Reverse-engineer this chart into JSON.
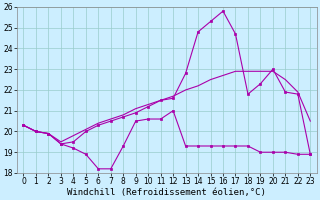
{
  "xlabel": "Windchill (Refroidissement éolien,°C)",
  "x": [
    0,
    1,
    2,
    3,
    4,
    5,
    6,
    7,
    8,
    9,
    10,
    11,
    12,
    13,
    14,
    15,
    16,
    17,
    18,
    19,
    20,
    21,
    22,
    23
  ],
  "line1": [
    20.3,
    20.0,
    19.9,
    19.4,
    19.2,
    18.9,
    18.2,
    18.2,
    19.3,
    20.5,
    20.6,
    20.6,
    21.0,
    19.3,
    19.3,
    19.3,
    19.3,
    19.3,
    19.3,
    19.0,
    19.0,
    19.0,
    18.9,
    18.9
  ],
  "line2": [
    20.3,
    20.0,
    19.9,
    19.4,
    19.5,
    20.0,
    20.3,
    20.5,
    20.7,
    20.9,
    21.2,
    21.5,
    21.6,
    22.8,
    24.8,
    25.3,
    25.8,
    24.7,
    21.8,
    22.3,
    23.0,
    21.9,
    21.8,
    18.9
  ],
  "line3": [
    20.3,
    20.0,
    19.9,
    19.5,
    19.8,
    20.1,
    20.4,
    20.6,
    20.8,
    21.1,
    21.3,
    21.5,
    21.7,
    22.0,
    22.2,
    22.5,
    22.7,
    22.9,
    22.9,
    22.9,
    22.9,
    22.5,
    21.9,
    20.5
  ],
  "line_color": "#aa00aa",
  "bg_color": "#cceeff",
  "grid_color": "#99cccc",
  "ylim": [
    18,
    26
  ],
  "xlim_min": -0.5,
  "xlim_max": 23.5,
  "yticks": [
    18,
    19,
    20,
    21,
    22,
    23,
    24,
    25,
    26
  ],
  "xticks": [
    0,
    1,
    2,
    3,
    4,
    5,
    6,
    7,
    8,
    9,
    10,
    11,
    12,
    13,
    14,
    15,
    16,
    17,
    18,
    19,
    20,
    21,
    22,
    23
  ],
  "tick_fontsize": 5.5,
  "xlabel_fontsize": 6.5
}
